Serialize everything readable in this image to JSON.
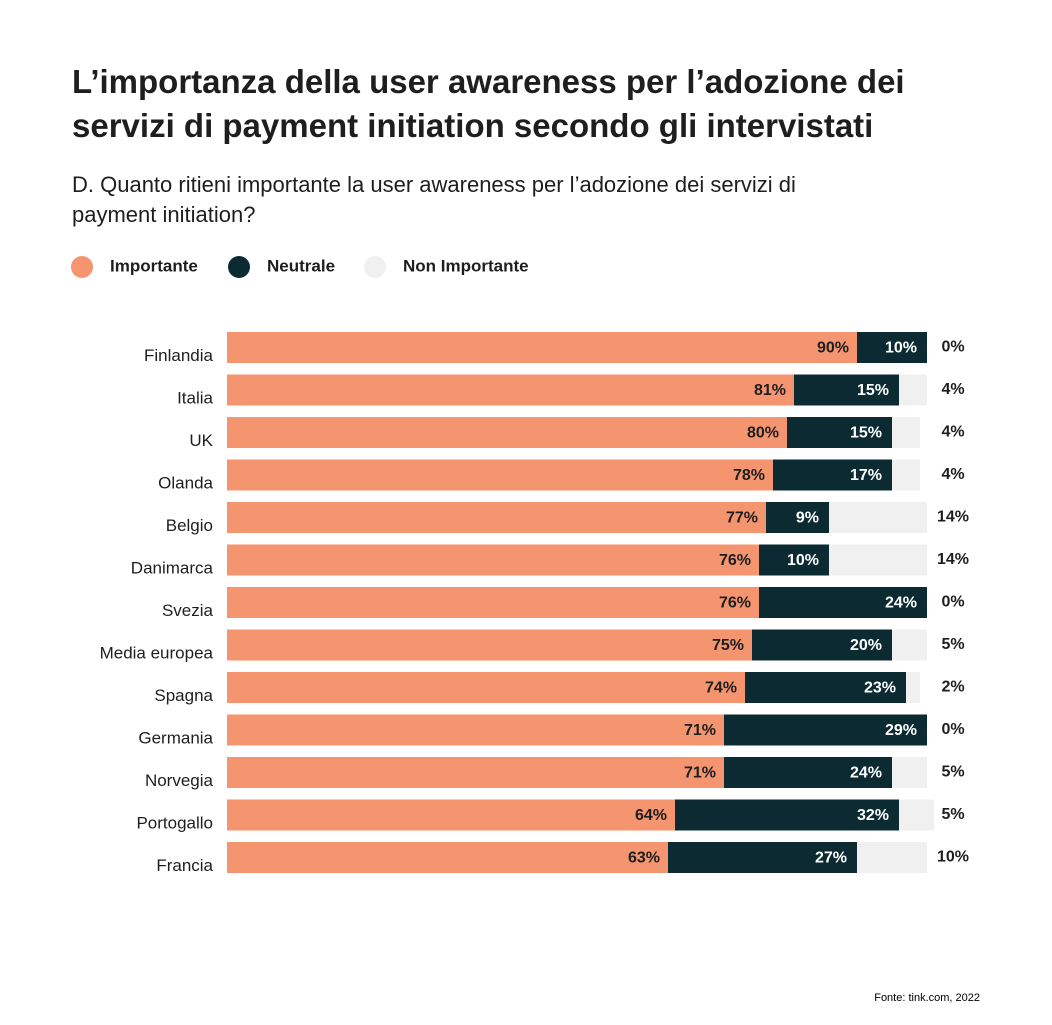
{
  "chart_data": {
    "type": "stacked-bar-horizontal",
    "title": "L’importanza della user awareness per l’adozione dei servizi di payment initiation secondo gli intervistati",
    "subtitle": "D. Quanto ritieni importante la user awareness per l’adozione dei servizi di payment initiation?",
    "source": "Fonte: tink.com, 2022",
    "categories": [
      "Finlandia",
      "Italia",
      "UK",
      "Olanda",
      "Belgio",
      "Danimarca",
      "Svezia",
      "Media europea",
      "Spagna",
      "Germania",
      "Norvegia",
      "Portogallo",
      "Francia"
    ],
    "xlim": [
      0,
      100
    ],
    "series": [
      {
        "name": "Importante",
        "color": "#f4956f",
        "values": [
          90,
          81,
          80,
          78,
          77,
          76,
          76,
          75,
          74,
          71,
          71,
          64,
          63
        ],
        "value_labels": [
          "90%",
          "81%",
          "80%",
          "78%",
          "77%",
          "76%",
          "76%",
          "75%",
          "74%",
          "71%",
          "71%",
          "64%",
          "63%"
        ]
      },
      {
        "name": "Neutrale",
        "color": "#0b2a31",
        "values": [
          10,
          15,
          15,
          17,
          9,
          10,
          24,
          20,
          23,
          29,
          24,
          32,
          27
        ],
        "value_labels": [
          "10%",
          "15%",
          "15%",
          "17%",
          "9%",
          "10%",
          "24%",
          "20%",
          "23%",
          "29%",
          "24%",
          "32%",
          "27%"
        ]
      },
      {
        "name": "Non Importante",
        "color": "#f0f0f0",
        "values": [
          0,
          4,
          4,
          4,
          14,
          14,
          0,
          5,
          2,
          0,
          5,
          5,
          10
        ],
        "value_labels": [
          "0%",
          "4%",
          "4%",
          "4%",
          "14%",
          "14%",
          "0%",
          "5%",
          "2%",
          "0%",
          "5%",
          "5%",
          "10%"
        ]
      }
    ]
  }
}
